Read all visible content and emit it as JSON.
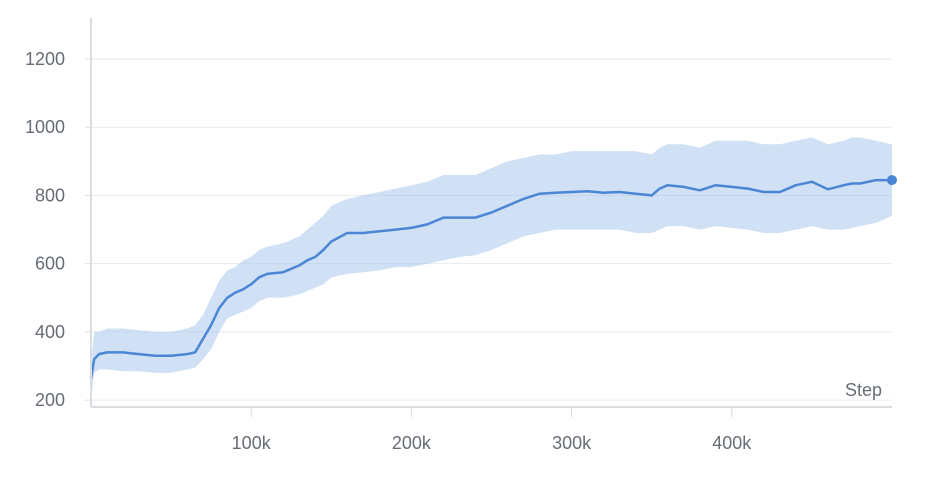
{
  "chart_data": {
    "type": "line",
    "title": "",
    "xlabel": "Step",
    "ylabel": "",
    "xlim": [
      0,
      500000
    ],
    "ylim": [
      180,
      1320
    ],
    "x_ticks": [
      100000,
      200000,
      300000,
      400000
    ],
    "x_tick_labels": [
      "100k",
      "200k",
      "300k",
      "400k"
    ],
    "y_ticks": [
      200,
      400,
      600,
      800,
      1000,
      1200
    ],
    "y_tick_labels": [
      "200",
      "400",
      "600",
      "800",
      "1000",
      "1200"
    ],
    "grid": "horizontal",
    "colors": {
      "line": "#4a86d4",
      "band": "#a9c6ec",
      "grid": "#e8eaed",
      "axis": "#d9dde2",
      "text": "#666d75"
    },
    "series": [
      {
        "x": [
          0,
          2000,
          5000,
          10000,
          20000,
          30000,
          40000,
          50000,
          60000,
          65000,
          70000,
          75000,
          80000,
          85000,
          90000,
          95000,
          100000,
          105000,
          110000,
          120000,
          130000,
          135000,
          140000,
          145000,
          150000,
          160000,
          170000,
          180000,
          190000,
          200000,
          210000,
          220000,
          230000,
          240000,
          250000,
          260000,
          270000,
          280000,
          290000,
          300000,
          310000,
          320000,
          330000,
          340000,
          350000,
          355000,
          360000,
          370000,
          380000,
          390000,
          400000,
          410000,
          420000,
          430000,
          440000,
          450000,
          460000,
          470000,
          475000,
          480000,
          490000,
          500000
        ],
        "y": [
          265,
          320,
          335,
          340,
          340,
          335,
          330,
          330,
          335,
          340,
          380,
          420,
          470,
          500,
          515,
          525,
          540,
          560,
          570,
          575,
          595,
          610,
          620,
          640,
          665,
          690,
          690,
          695,
          700,
          705,
          715,
          735,
          735,
          735,
          750,
          770,
          790,
          805,
          808,
          810,
          812,
          808,
          810,
          805,
          800,
          820,
          830,
          825,
          815,
          830,
          825,
          820,
          810,
          810,
          830,
          840,
          818,
          830,
          835,
          835,
          845,
          845
        ],
        "band_low": [
          200,
          280,
          290,
          290,
          285,
          285,
          280,
          280,
          290,
          295,
          320,
          350,
          400,
          440,
          450,
          460,
          470,
          490,
          500,
          500,
          510,
          520,
          530,
          540,
          560,
          570,
          575,
          580,
          590,
          590,
          600,
          610,
          620,
          625,
          640,
          660,
          680,
          690,
          700,
          700,
          700,
          700,
          700,
          690,
          690,
          700,
          710,
          710,
          700,
          710,
          705,
          700,
          690,
          690,
          700,
          710,
          700,
          700,
          705,
          710,
          720,
          740
        ],
        "band_high": [
          300,
          400,
          400,
          410,
          410,
          405,
          400,
          400,
          410,
          420,
          450,
          500,
          550,
          580,
          590,
          610,
          620,
          640,
          650,
          660,
          680,
          700,
          720,
          740,
          770,
          790,
          800,
          810,
          820,
          830,
          840,
          860,
          860,
          860,
          880,
          900,
          910,
          920,
          920,
          930,
          930,
          930,
          930,
          930,
          920,
          940,
          950,
          950,
          940,
          960,
          960,
          960,
          950,
          950,
          960,
          970,
          950,
          960,
          970,
          970,
          960,
          950
        ]
      }
    ]
  }
}
